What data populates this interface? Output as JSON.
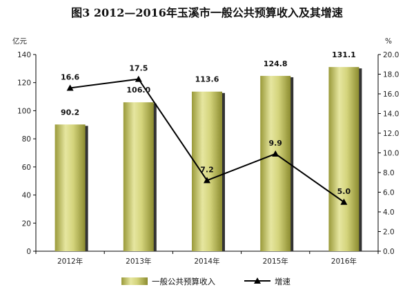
{
  "chart_data": {
    "type": "bar",
    "title": "图3   2012—2016年玉溪市一般公共预算收入及其增速",
    "categories": [
      "2012年",
      "2013年",
      "2014年",
      "2015年",
      "2016年"
    ],
    "y_left_unit": "亿元",
    "y_right_unit": "%",
    "ylim_left": [
      0,
      140
    ],
    "ylim_right": [
      0.0,
      20.0
    ],
    "y_left_ticks": [
      "0",
      "20",
      "40",
      "60",
      "80",
      "100",
      "120",
      "140"
    ],
    "y_right_ticks": [
      "0.0",
      "2.0",
      "4.0",
      "6.0",
      "8.0",
      "10.0",
      "12.0",
      "14.0",
      "16.0",
      "18.0",
      "20.0"
    ],
    "grid": false,
    "legend_position": "bottom",
    "series": [
      {
        "name": "一般公共预算收入",
        "kind": "bar",
        "axis": "left",
        "values": [
          90.2,
          106.0,
          113.6,
          124.8,
          131.1
        ],
        "labels": [
          "90.2",
          "106.0",
          "113.6",
          "124.8",
          "131.1"
        ],
        "color": "#c8c86a"
      },
      {
        "name": "增速",
        "kind": "line",
        "axis": "right",
        "values": [
          16.6,
          17.5,
          7.2,
          9.9,
          5.0
        ],
        "labels": [
          "16.6",
          "17.5",
          "7.2",
          "9.9",
          "5.0"
        ],
        "color": "#000000"
      }
    ]
  }
}
